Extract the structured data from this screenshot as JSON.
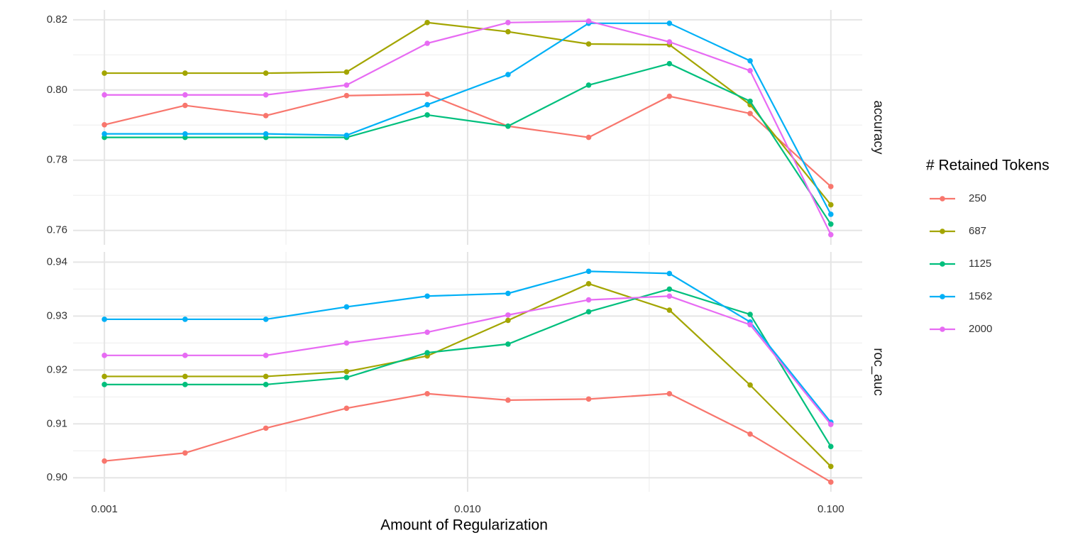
{
  "chart_data": [
    {
      "type": "line",
      "facet": "accuracy",
      "xscale": "log",
      "grid": true,
      "legend_title": "# Retained Tokens",
      "legend_position": "right",
      "x": [
        0.001,
        0.001668,
        0.002783,
        0.004642,
        0.007743,
        0.01292,
        0.02154,
        0.03594,
        0.05995,
        0.1
      ],
      "xlim": [
        0.00082,
        0.122
      ],
      "xticks": [
        0.001,
        {
          "value": 0.01,
          "label": "0.010"
        },
        {
          "value": 0.1,
          "label": "0.100"
        }
      ],
      "xminorticks": [
        0.003162,
        0.03162
      ],
      "ylim": [
        0.7559,
        0.8228
      ],
      "yticks": [
        0.76,
        0.78,
        {
          "value": 0.8,
          "label": "0.80"
        },
        0.82
      ],
      "yminorticks": [
        0.77,
        0.79,
        0.81
      ],
      "series": [
        {
          "name": "250",
          "color": "#f8766d",
          "values": [
            0.7901,
            0.7956,
            0.7927,
            0.7984,
            0.7988,
            0.7897,
            0.7865,
            0.7982,
            0.7933,
            0.7725
          ]
        },
        {
          "name": "687",
          "color": "#a3a500",
          "values": [
            0.8048,
            0.8048,
            0.8048,
            0.8051,
            0.8192,
            0.8166,
            0.8131,
            0.8129,
            0.7958,
            0.7673
          ]
        },
        {
          "name": "1125",
          "color": "#00bf7d",
          "values": [
            0.7865,
            0.7865,
            0.7865,
            0.7865,
            0.7929,
            0.7897,
            0.8014,
            0.8075,
            0.7968,
            0.7618
          ]
        },
        {
          "name": "1562",
          "color": "#00b0f6",
          "values": [
            0.7875,
            0.7875,
            0.7875,
            0.7871,
            0.7958,
            0.8044,
            0.819,
            0.819,
            0.8083,
            0.7646
          ]
        },
        {
          "name": "2000",
          "color": "#e76bf3",
          "values": [
            0.7986,
            0.7986,
            0.7986,
            0.8014,
            0.8133,
            0.8192,
            0.8196,
            0.8137,
            0.8055,
            0.7588
          ]
        }
      ]
    },
    {
      "type": "line",
      "facet": "roc_auc",
      "xscale": "log",
      "grid": true,
      "xlabel": "Amount of Regularization",
      "x": [
        0.001,
        0.001668,
        0.002783,
        0.004642,
        0.007743,
        0.01292,
        0.02154,
        0.03594,
        0.05995,
        0.1
      ],
      "xlim": [
        0.00082,
        0.122
      ],
      "xticks": [
        0.001,
        {
          "value": 0.01,
          "label": "0.010"
        },
        {
          "value": 0.1,
          "label": "0.100"
        }
      ],
      "xminorticks": [
        0.003162,
        0.03162
      ],
      "ylim": [
        0.8974,
        0.9419
      ],
      "yticks": [
        {
          "value": 0.9,
          "label": "0.90"
        },
        0.91,
        0.92,
        0.93,
        0.94
      ],
      "yminorticks": [
        0.905,
        0.915,
        0.925,
        0.935
      ],
      "series": [
        {
          "name": "250",
          "color": "#f8766d",
          "values": [
            0.9031,
            0.9046,
            0.9092,
            0.9129,
            0.9156,
            0.9144,
            0.9146,
            0.9156,
            0.9081,
            0.8992
          ]
        },
        {
          "name": "687",
          "color": "#a3a500",
          "values": [
            0.9188,
            0.9188,
            0.9188,
            0.9197,
            0.9226,
            0.9292,
            0.936,
            0.9311,
            0.9172,
            0.9021
          ]
        },
        {
          "name": "1125",
          "color": "#00bf7d",
          "values": [
            0.9173,
            0.9173,
            0.9173,
            0.9186,
            0.9232,
            0.9248,
            0.9308,
            0.935,
            0.9303,
            0.9058
          ]
        },
        {
          "name": "1562",
          "color": "#00b0f6",
          "values": [
            0.9294,
            0.9294,
            0.9294,
            0.9317,
            0.9337,
            0.9342,
            0.9383,
            0.9379,
            0.9289,
            0.9103
          ]
        },
        {
          "name": "2000",
          "color": "#e76bf3",
          "values": [
            0.9227,
            0.9227,
            0.9227,
            0.925,
            0.927,
            0.9302,
            0.933,
            0.9337,
            0.9284,
            0.9099
          ]
        }
      ]
    }
  ]
}
